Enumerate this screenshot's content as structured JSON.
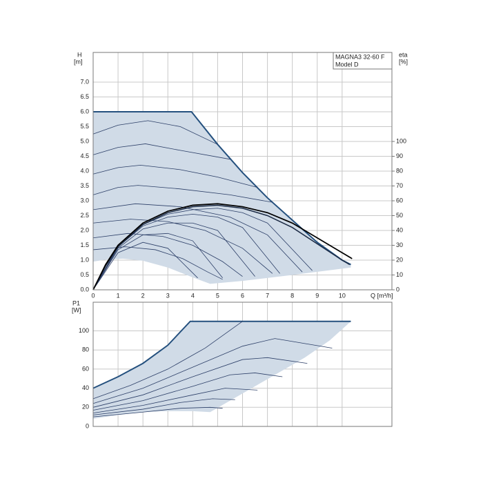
{
  "chart_data": [
    {
      "type": "line",
      "ylabel": "H",
      "yunit": "[m]",
      "y2label": "eta",
      "y2unit": "[%]",
      "xlabel": "Q [m³/h]",
      "annotations": [
        "MAGNA3 32-60 F",
        "Model D"
      ],
      "xlim": [
        0,
        12
      ],
      "xticks": [
        0,
        1,
        2,
        3,
        4,
        5,
        6,
        7,
        8,
        9,
        10
      ],
      "ylim": [
        0,
        8
      ],
      "yticks": [
        {
          "value": 0,
          "label": "0.0"
        },
        0.5,
        {
          "value": 1,
          "label": "1.0"
        },
        1.5,
        {
          "value": 2,
          "label": "2.0"
        },
        2.5,
        {
          "value": 3,
          "label": "3.0"
        },
        3.5,
        {
          "value": 4,
          "label": "4.0"
        },
        4.5,
        {
          "value": 5,
          "label": "5.0"
        },
        5.5,
        {
          "value": 6,
          "label": "6.0"
        },
        6.5,
        {
          "value": 7,
          "label": "7.0"
        }
      ],
      "y2lim": [
        0,
        160
      ],
      "y2ticks": [
        0,
        10,
        20,
        30,
        40,
        50,
        60,
        70,
        80,
        90,
        100
      ],
      "grid": true,
      "band": {
        "fill": "#d0dbe7",
        "line_color": "#24507e",
        "upper": {
          "x": [
            0,
            3.95,
            5,
            6,
            7,
            8,
            9,
            10,
            10.35
          ],
          "values": [
            6,
            6,
            4.9,
            3.95,
            3.1,
            2.35,
            1.6,
            1.0,
            0.85
          ]
        },
        "lower": {
          "x": [
            0,
            0.6,
            1.2,
            2,
            3,
            4,
            4.7,
            6,
            8,
            10.35
          ],
          "values": [
            0.95,
            1.03,
            1.05,
            0.98,
            0.75,
            0.42,
            0.2,
            0.3,
            0.5,
            0.75
          ]
        }
      },
      "series": [
        {
          "color": "#2a3d66",
          "width": 0.8,
          "x": [
            0,
            1,
            2.2,
            3.5,
            5.0
          ],
          "values": [
            5.25,
            5.55,
            5.7,
            5.5,
            4.9
          ]
        },
        {
          "color": "#2a3d66",
          "width": 0.8,
          "x": [
            0,
            1,
            2.1,
            3.5,
            5.5
          ],
          "values": [
            4.55,
            4.8,
            4.92,
            4.7,
            4.4
          ]
        },
        {
          "color": "#2a3d66",
          "width": 0.8,
          "x": [
            0,
            1,
            1.9,
            3.5,
            5,
            6.6
          ],
          "values": [
            3.9,
            4.12,
            4.2,
            4.05,
            3.8,
            3.45
          ]
        },
        {
          "color": "#2a3d66",
          "width": 0.8,
          "x": [
            0,
            1,
            1.8,
            3.5,
            5.5,
            7.2
          ],
          "values": [
            3.2,
            3.45,
            3.52,
            3.4,
            3.2,
            2.95
          ]
        },
        {
          "color": "#2a3d66",
          "width": 0.8,
          "x": [
            0,
            1.7,
            3.5,
            5.5,
            7,
            8.4
          ],
          "values": [
            2.7,
            2.9,
            2.8,
            2.45,
            1.85,
            0.6
          ]
        },
        {
          "color": "#2a3d66",
          "width": 0.8,
          "x": [
            0,
            1.5,
            3,
            4.5,
            6,
            7.2
          ],
          "values": [
            2.25,
            2.38,
            2.3,
            2.0,
            1.4,
            0.55
          ]
        },
        {
          "color": "#2a3d66",
          "width": 0.8,
          "x": [
            0,
            1.4,
            2.8,
            4,
            5.2,
            6.0
          ],
          "values": [
            1.75,
            1.9,
            1.8,
            1.5,
            0.95,
            0.45
          ]
        },
        {
          "color": "#2a3d66",
          "width": 0.8,
          "x": [
            0,
            1.3,
            2.5,
            3.6,
            4.6,
            5.2
          ],
          "values": [
            1.35,
            1.45,
            1.35,
            1.05,
            0.6,
            0.35
          ]
        },
        {
          "color": "#2a3d66",
          "width": 0.8,
          "axis": "y2",
          "x": [
            0,
            1,
            2,
            3,
            4,
            5,
            6,
            7,
            8.8
          ],
          "values": [
            0,
            29,
            44,
            51,
            54,
            55,
            52,
            45,
            13
          ]
        },
        {
          "color": "#2a3d66",
          "width": 0.8,
          "axis": "y2",
          "x": [
            0,
            1,
            2,
            3,
            4,
            5,
            6,
            7.5
          ],
          "values": [
            0,
            29,
            43,
            49,
            51,
            49,
            42,
            11
          ]
        },
        {
          "color": "#2a3d66",
          "width": 0.8,
          "axis": "y2",
          "x": [
            0,
            1,
            2,
            3,
            4,
            5,
            6.5
          ],
          "values": [
            0,
            28,
            41,
            45,
            45,
            40,
            9
          ]
        },
        {
          "color": "#2a3d66",
          "width": 0.8,
          "axis": "y2",
          "x": [
            0,
            1,
            2,
            3,
            4,
            5.2
          ],
          "values": [
            0,
            27,
            37,
            38,
            33,
            8
          ]
        },
        {
          "color": "#2a3d66",
          "width": 0.8,
          "axis": "y2",
          "x": [
            0,
            1,
            2,
            3,
            4.2
          ],
          "values": [
            0,
            25,
            32,
            28,
            8
          ]
        },
        {
          "color": "#1b2a44",
          "width": 1.5,
          "axis": "y2",
          "x": [
            0,
            0.5,
            1,
            2,
            3,
            4,
            5,
            6,
            7,
            8,
            9,
            10,
            10.3
          ],
          "values": [
            0,
            16,
            29,
            44,
            52,
            56,
            57,
            55,
            50,
            42,
            31,
            20,
            17
          ]
        },
        {
          "color": "#000000",
          "width": 1.8,
          "axis": "y2",
          "x": [
            0,
            0.5,
            1,
            2,
            3,
            4,
            5,
            6,
            7,
            8,
            9,
            10,
            10.4
          ],
          "values": [
            0,
            17,
            30,
            45,
            53,
            57,
            58,
            56,
            52,
            45,
            35,
            25,
            21
          ]
        }
      ]
    },
    {
      "type": "line",
      "ylabel": "P1",
      "yunit": "[W]",
      "xlim": [
        0,
        12
      ],
      "xticks": [
        0,
        1,
        2,
        3,
        4,
        5,
        6,
        7,
        8,
        9,
        10
      ],
      "ylim": [
        0,
        130
      ],
      "yticks": [
        0,
        20,
        40,
        60,
        80,
        100
      ],
      "grid": true,
      "band": {
        "fill": "#d0dbe7",
        "line_color": "#24507e",
        "upper": {
          "x": [
            0,
            1,
            2,
            3,
            3.9,
            10.35
          ],
          "values": [
            40,
            52,
            66,
            85,
            110,
            110
          ]
        },
        "lower": {
          "x": [
            0,
            1,
            2,
            3,
            4,
            4.7,
            5.5,
            6.5,
            7.5,
            8.5,
            9.5,
            10.35
          ],
          "values": [
            8,
            12,
            15,
            16,
            16,
            15,
            27,
            42,
            57,
            72,
            90,
            110
          ]
        }
      },
      "series": [
        {
          "color": "#2a3d66",
          "width": 0.8,
          "x": [
            0,
            1.5,
            3,
            4.5,
            6
          ],
          "values": [
            29,
            43,
            60,
            82,
            110
          ]
        },
        {
          "color": "#2a3d66",
          "width": 0.8,
          "x": [
            0,
            2,
            4,
            6,
            7.3,
            9.6
          ],
          "values": [
            24,
            40,
            62,
            84,
            92,
            82
          ]
        },
        {
          "color": "#2a3d66",
          "width": 0.8,
          "x": [
            0,
            2,
            4,
            6,
            7,
            8.6
          ],
          "values": [
            20,
            33,
            52,
            70,
            72,
            66
          ]
        },
        {
          "color": "#2a3d66",
          "width": 0.8,
          "x": [
            0,
            2,
            4,
            5.5,
            6.5,
            7.6
          ],
          "values": [
            17,
            27,
            42,
            54,
            56,
            52
          ]
        },
        {
          "color": "#2a3d66",
          "width": 0.8,
          "x": [
            0,
            2,
            4,
            5.3,
            6.6
          ],
          "values": [
            14,
            22,
            33,
            40,
            38
          ]
        },
        {
          "color": "#2a3d66",
          "width": 0.8,
          "x": [
            0,
            2,
            3.5,
            4.8,
            5.7
          ],
          "values": [
            12,
            18,
            25,
            29,
            28
          ]
        },
        {
          "color": "#2a3d66",
          "width": 0.8,
          "x": [
            0,
            2,
            3.5,
            4.7,
            5.2
          ],
          "values": [
            10,
            15,
            19,
            20,
            19
          ]
        }
      ]
    }
  ]
}
